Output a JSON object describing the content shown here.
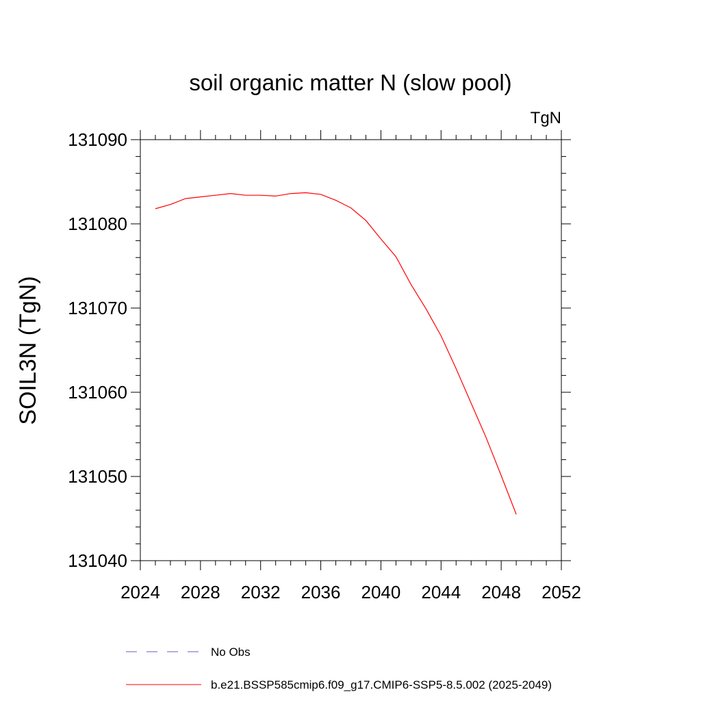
{
  "chart_data": {
    "type": "line",
    "title": "soil organic matter N (slow pool)",
    "units_label": "TgN",
    "ylabel": "SOIL3N  (TgN)",
    "xlabel": "",
    "xlim": [
      2024,
      2052
    ],
    "ylim": [
      131040,
      131090
    ],
    "x_ticks": [
      "2024",
      "2028",
      "2032",
      "2036",
      "2040",
      "2044",
      "2048",
      "2052"
    ],
    "y_ticks": [
      "131040",
      "131050",
      "131060",
      "131070",
      "131080",
      "131090"
    ],
    "grid": false,
    "legend_placement": "bottom",
    "series": [
      {
        "name": "No Obs",
        "color": "#6a5acd",
        "dash": "dashed",
        "x": [],
        "y": []
      },
      {
        "name": "b.e21.BSSP585cmip6.f09_g17.CMIP6-SSP5-8.5.002 (2025-2049)",
        "color": "#ff0000",
        "dash": "solid",
        "x": [
          2025,
          2026,
          2027,
          2028,
          2029,
          2030,
          2031,
          2032,
          2033,
          2034,
          2035,
          2036,
          2037,
          2038,
          2039,
          2040,
          2041,
          2042,
          2043,
          2044,
          2045,
          2046,
          2047,
          2048,
          2049
        ],
        "y": [
          131081.8,
          131082.3,
          131083.0,
          131083.2,
          131083.4,
          131083.6,
          131083.4,
          131083.4,
          131083.3,
          131083.6,
          131083.7,
          131083.5,
          131082.8,
          131081.9,
          131080.4,
          131078.2,
          131076.1,
          131072.8,
          131069.9,
          131066.7,
          131062.8,
          131058.7,
          131054.6,
          131050.1,
          131045.5
        ]
      }
    ]
  }
}
